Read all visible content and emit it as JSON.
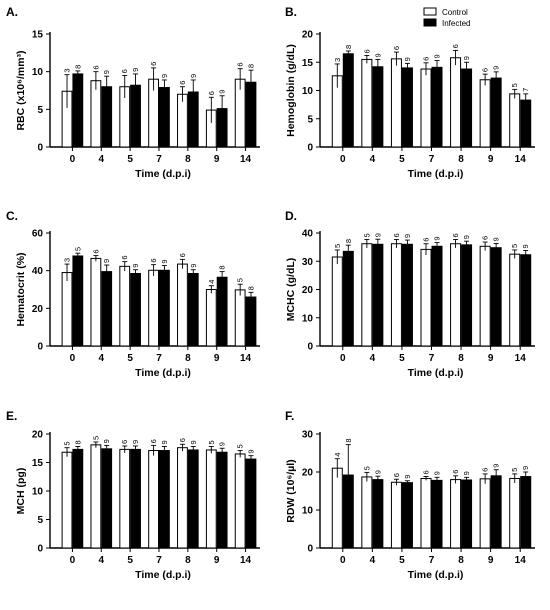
{
  "legend": {
    "items": [
      {
        "label": "Control",
        "color": "#ffffff"
      },
      {
        "label": "Infected",
        "color": "#000000"
      }
    ],
    "placement": "top-right"
  },
  "colors": {
    "control": "#ffffff",
    "infected": "#000000",
    "stroke": "#000000"
  },
  "chart_data": [
    {
      "panel": "A.",
      "type": "bar",
      "xlabel": "Time (d.p.i)",
      "ylabel": "RBC (x10⁶/mm³)",
      "categories": [
        "0",
        "4",
        "5",
        "7",
        "8",
        "9",
        "14"
      ],
      "ylim": [
        0,
        15
      ],
      "yticks": [
        0,
        5,
        10,
        15
      ],
      "series": [
        {
          "name": "Control",
          "values": [
            7.4,
            8.8,
            8.0,
            9.0,
            7.0,
            4.9,
            9.0
          ],
          "errors": [
            2.2,
            1.2,
            1.5,
            1.5,
            1.0,
            1.7,
            1.4
          ],
          "n": [
            "3",
            "6",
            "6",
            "6",
            "6",
            "6",
            "6"
          ]
        },
        {
          "name": "Infected",
          "values": [
            9.7,
            8.0,
            8.2,
            7.9,
            7.3,
            5.1,
            8.6
          ],
          "errors": [
            0.4,
            1.4,
            1.5,
            1.0,
            1.6,
            1.7,
            1.6
          ],
          "n": [
            "8",
            "9",
            "9",
            "9",
            "9",
            "9",
            "8"
          ]
        }
      ]
    },
    {
      "panel": "B.",
      "type": "bar",
      "xlabel": "Time (d.p.i)",
      "ylabel": "Hemoglobin (g/dL)",
      "categories": [
        "0",
        "4",
        "5",
        "7",
        "8",
        "9",
        "14"
      ],
      "ylim": [
        0,
        20
      ],
      "yticks": [
        0,
        5,
        10,
        15,
        20
      ],
      "series": [
        {
          "name": "Control",
          "values": [
            12.6,
            15.5,
            15.6,
            13.8,
            15.8,
            11.9,
            9.4
          ],
          "errors": [
            2.1,
            0.7,
            1.2,
            1.1,
            1.3,
            1.0,
            0.8
          ],
          "n": [
            "3",
            "6",
            "6",
            "6",
            "6",
            "6",
            "5"
          ]
        },
        {
          "name": "Infected",
          "values": [
            16.5,
            14.2,
            14.0,
            14.1,
            13.8,
            12.2,
            8.3
          ],
          "errors": [
            0.5,
            1.3,
            0.8,
            1.2,
            1.2,
            1.1,
            1.1
          ],
          "n": [
            "8",
            "9",
            "9",
            "9",
            "9",
            "9",
            "7"
          ]
        }
      ]
    },
    {
      "panel": "C.",
      "type": "bar",
      "xlabel": "Time (d.p.i)",
      "ylabel": "Hematocrit (%)",
      "categories": [
        "0",
        "4",
        "5",
        "7",
        "8",
        "9",
        "14"
      ],
      "ylim": [
        0,
        60
      ],
      "yticks": [
        0,
        20,
        40,
        60
      ],
      "series": [
        {
          "name": "Control",
          "values": [
            39.0,
            46.5,
            42.3,
            40.2,
            43.5,
            30.0,
            29.8
          ],
          "errors": [
            4.5,
            1.5,
            2.5,
            3.0,
            2.5,
            2.0,
            3.0
          ],
          "n": [
            "3",
            "6",
            "6",
            "6",
            "6",
            "4",
            "5"
          ]
        },
        {
          "name": "Infected",
          "values": [
            47.8,
            39.5,
            38.5,
            40.2,
            38.5,
            36.5,
            26.0
          ],
          "errors": [
            1.5,
            3.5,
            2.0,
            2.5,
            2.0,
            3.0,
            2.5
          ],
          "n": [
            "5",
            "9",
            "9",
            "9",
            "9",
            "8",
            "8"
          ]
        }
      ]
    },
    {
      "panel": "D.",
      "type": "bar",
      "xlabel": "Time (d.p.i)",
      "ylabel": "MCHC (g/dL)",
      "categories": [
        "0",
        "4",
        "5",
        "7",
        "8",
        "9",
        "14"
      ],
      "ylim": [
        0,
        40
      ],
      "yticks": [
        0,
        10,
        20,
        30,
        40
      ],
      "series": [
        {
          "name": "Control",
          "values": [
            31.5,
            36.2,
            36.2,
            34.2,
            36.2,
            35.3,
            32.5
          ],
          "errors": [
            2.5,
            1.5,
            1.5,
            2.0,
            1.5,
            1.5,
            1.5
          ],
          "n": [
            "5",
            "5",
            "6",
            "6",
            "6",
            "6",
            "5"
          ]
        },
        {
          "name": "Infected",
          "values": [
            33.5,
            36.0,
            36.0,
            35.3,
            35.8,
            34.8,
            32.3
          ],
          "errors": [
            2.2,
            1.8,
            1.5,
            1.3,
            1.3,
            1.5,
            1.5
          ],
          "n": [
            "8",
            "9",
            "9",
            "9",
            "9",
            "9",
            "9"
          ]
        }
      ]
    },
    {
      "panel": "E.",
      "type": "bar",
      "xlabel": "Time (d.p.i)",
      "ylabel": "MCH (pg)",
      "categories": [
        "0",
        "4",
        "5",
        "7",
        "8",
        "9",
        "14"
      ],
      "ylim": [
        0,
        20
      ],
      "yticks": [
        0,
        5,
        10,
        15,
        20
      ],
      "series": [
        {
          "name": "Control",
          "values": [
            16.8,
            18.1,
            17.3,
            17.1,
            17.6,
            17.2,
            16.5
          ],
          "errors": [
            0.8,
            0.5,
            0.6,
            0.9,
            0.6,
            0.6,
            0.6
          ],
          "n": [
            "5",
            "5",
            "6",
            "6",
            "6",
            "5",
            "5"
          ]
        },
        {
          "name": "Infected",
          "values": [
            17.3,
            17.4,
            17.3,
            17.1,
            17.2,
            16.8,
            15.6
          ],
          "errors": [
            0.5,
            0.6,
            0.6,
            0.7,
            0.6,
            0.7,
            0.6
          ],
          "n": [
            "8",
            "9",
            "9",
            "9",
            "9",
            "9",
            "9"
          ]
        }
      ]
    },
    {
      "panel": "F.",
      "type": "bar",
      "xlabel": "Time (d.p.i)",
      "ylabel": "RDW (10⁶/µl)",
      "categories": [
        "0",
        "4",
        "5",
        "7",
        "8",
        "9",
        "14"
      ],
      "ylim": [
        0,
        30
      ],
      "yticks": [
        0,
        10,
        20,
        30
      ],
      "series": [
        {
          "name": "Control",
          "values": [
            21.0,
            18.7,
            17.3,
            18.3,
            18.0,
            18.2,
            18.3
          ],
          "errors": [
            2.5,
            1.2,
            0.8,
            0.5,
            1.0,
            1.3,
            1.2
          ],
          "n": [
            "4",
            "5",
            "6",
            "6",
            "6",
            "6",
            "5"
          ]
        },
        {
          "name": "Infected",
          "values": [
            19.2,
            18.0,
            17.2,
            17.8,
            17.9,
            19.0,
            18.8
          ],
          "errors": [
            8.0,
            0.9,
            0.5,
            0.8,
            0.7,
            1.6,
            1.2
          ],
          "n": [
            "8",
            "9",
            "9",
            "9",
            "9",
            "9",
            "9"
          ]
        }
      ]
    }
  ]
}
